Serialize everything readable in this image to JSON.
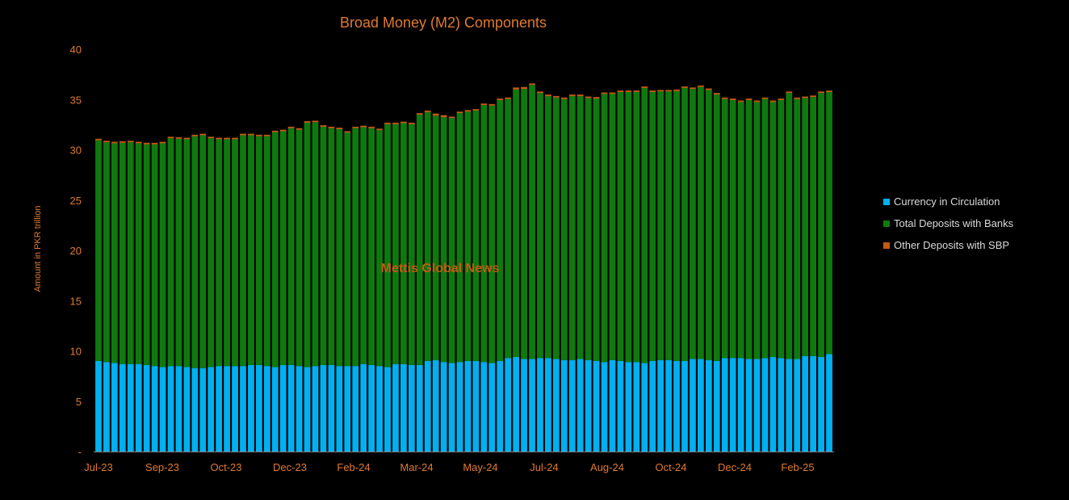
{
  "chart_data": {
    "type": "bar",
    "stacked": true,
    "title": "Broad Money (M2) Components",
    "ylabel": "Amount in PKR trillion",
    "ylim": [
      0,
      40
    ],
    "yticks": [
      "-",
      "5",
      "10",
      "15",
      "20",
      "25",
      "30",
      "35",
      "40"
    ],
    "x_tick_labels": [
      "Jul-23",
      "Sep-23",
      "Oct-23",
      "Dec-23",
      "Feb-24",
      "Mar-24",
      "May-24",
      "Jul-24",
      "Aug-24",
      "Oct-24",
      "Dec-24",
      "Feb-25"
    ],
    "watermark": "Mettis Global News",
    "legend_position": "right",
    "colors": {
      "currency": "#00B0F0",
      "deposits": "#0E7A0E",
      "other": "#C55A11",
      "axis_text": "#E07A30",
      "background": "#000000"
    },
    "series": [
      {
        "name": "Currency in Circulation",
        "values": [
          9.0,
          8.9,
          8.8,
          8.7,
          8.7,
          8.7,
          8.6,
          8.5,
          8.4,
          8.5,
          8.5,
          8.4,
          8.3,
          8.3,
          8.4,
          8.5,
          8.5,
          8.5,
          8.5,
          8.6,
          8.6,
          8.5,
          8.4,
          8.6,
          8.6,
          8.5,
          8.4,
          8.5,
          8.6,
          8.6,
          8.5,
          8.5,
          8.5,
          8.7,
          8.6,
          8.5,
          8.4,
          8.7,
          8.7,
          8.6,
          8.6,
          9.0,
          9.1,
          8.9,
          8.8,
          8.9,
          9.0,
          9.0,
          8.9,
          8.8,
          9.0,
          9.3,
          9.4,
          9.2,
          9.2,
          9.3,
          9.3,
          9.2,
          9.1,
          9.1,
          9.2,
          9.1,
          9.0,
          8.9,
          9.1,
          9.0,
          8.9,
          8.9,
          8.8,
          9.0,
          9.1,
          9.1,
          9.0,
          9.0,
          9.2,
          9.2,
          9.1,
          9.0,
          9.3,
          9.3,
          9.3,
          9.2,
          9.2,
          9.3,
          9.4,
          9.3,
          9.2,
          9.2,
          9.5,
          9.5,
          9.4,
          9.7
        ]
      },
      {
        "name": "Total Deposits with Banks",
        "values": [
          21.95,
          21.85,
          21.85,
          22.0,
          22.05,
          21.95,
          21.95,
          22.05,
          22.25,
          22.65,
          22.6,
          22.65,
          23.05,
          23.15,
          22.75,
          22.55,
          22.55,
          22.55,
          22.95,
          22.85,
          22.75,
          22.85,
          23.35,
          23.25,
          23.55,
          23.5,
          24.3,
          24.25,
          23.7,
          23.55,
          23.55,
          23.2,
          23.65,
          23.55,
          23.55,
          23.45,
          24.15,
          23.85,
          23.95,
          23.95,
          24.9,
          24.75,
          24.3,
          24.35,
          24.35,
          24.75,
          24.8,
          24.9,
          25.55,
          25.6,
          25.95,
          25.75,
          26.6,
          26.85,
          27.25,
          26.35,
          26.05,
          26.0,
          25.95,
          26.25,
          26.15,
          26.05,
          26.1,
          26.65,
          26.45,
          26.75,
          26.85,
          26.85,
          27.35,
          26.75,
          26.7,
          26.7,
          26.85,
          27.15,
          26.85,
          27.05,
          26.85,
          26.5,
          25.75,
          25.65,
          25.45,
          25.75,
          25.55,
          25.75,
          25.35,
          25.65,
          26.45,
          25.85,
          25.65,
          25.75,
          26.25,
          26.05
        ]
      },
      {
        "name": "Other Deposits with SBP",
        "values": [
          0.15,
          0.15,
          0.15,
          0.15,
          0.15,
          0.15,
          0.15,
          0.15,
          0.15,
          0.15,
          0.15,
          0.15,
          0.15,
          0.15,
          0.15,
          0.15,
          0.15,
          0.15,
          0.15,
          0.15,
          0.15,
          0.15,
          0.15,
          0.15,
          0.15,
          0.15,
          0.15,
          0.15,
          0.15,
          0.15,
          0.15,
          0.15,
          0.15,
          0.15,
          0.15,
          0.15,
          0.15,
          0.15,
          0.15,
          0.15,
          0.15,
          0.15,
          0.2,
          0.2,
          0.15,
          0.15,
          0.15,
          0.15,
          0.15,
          0.15,
          0.15,
          0.15,
          0.2,
          0.2,
          0.15,
          0.15,
          0.15,
          0.15,
          0.15,
          0.15,
          0.15,
          0.15,
          0.15,
          0.15,
          0.15,
          0.15,
          0.15,
          0.15,
          0.15,
          0.15,
          0.15,
          0.15,
          0.15,
          0.15,
          0.15,
          0.15,
          0.15,
          0.15,
          0.15,
          0.15,
          0.15,
          0.15,
          0.15,
          0.15,
          0.15,
          0.15,
          0.15,
          0.15,
          0.15,
          0.15,
          0.15,
          0.15
        ]
      }
    ]
  }
}
